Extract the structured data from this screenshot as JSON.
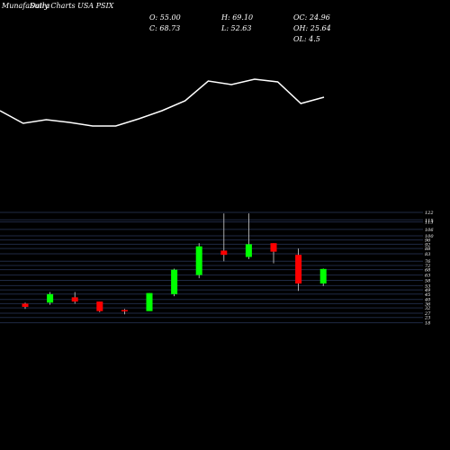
{
  "header": {
    "brand": "MunafaSutra",
    "subtitle": "Daily Charts USA PSIX",
    "o": "O: 55.00",
    "c": "C: 68.73",
    "h": "H: 69.10",
    "l": "L: 52.63",
    "oc": "OC: 24.96",
    "oh": "OH: 25.64",
    "ol": "OL: 4.5"
  },
  "colors": {
    "up": "#00ff00",
    "down": "#ff0000",
    "grid": "#1f2a44",
    "background": "#000000",
    "line": "#ffffff"
  },
  "chart_data": {
    "type": "candlestick",
    "ylim": [
      16,
      122
    ],
    "y_ticks": [
      122,
      115,
      113,
      106,
      100,
      96,
      92,
      88,
      83,
      76,
      72,
      68,
      63,
      58,
      53,
      49,
      45,
      40,
      36,
      32,
      27,
      23,
      18
    ],
    "y_tick_labels": [
      "122",
      "115",
      "113",
      "106",
      "100",
      "96",
      "92",
      "88",
      "83",
      "76",
      "72",
      "68",
      "63",
      "58",
      "53",
      "49",
      "45",
      "40",
      "36",
      "32",
      "27",
      "23",
      "18"
    ],
    "candles": [
      {
        "open": 36,
        "high": 37,
        "low": 31,
        "close": 33
      },
      {
        "open": 37,
        "high": 47,
        "low": 35,
        "close": 45
      },
      {
        "open": 42,
        "high": 47,
        "low": 36,
        "close": 38
      },
      {
        "open": 38,
        "high": 38,
        "low": 28,
        "close": 29
      },
      {
        "open": 30,
        "high": 31,
        "low": 26,
        "close": 29
      },
      {
        "open": 29,
        "high": 46,
        "low": 29,
        "close": 46
      },
      {
        "open": 45,
        "high": 69,
        "low": 43,
        "close": 68
      },
      {
        "open": 63,
        "high": 93,
        "low": 60,
        "close": 90
      },
      {
        "open": 86,
        "high": 121,
        "low": 76,
        "close": 82
      },
      {
        "open": 80,
        "high": 121,
        "low": 78,
        "close": 92
      },
      {
        "open": 93,
        "high": 93,
        "low": 74,
        "close": 85
      },
      {
        "open": 82,
        "high": 88,
        "low": 48,
        "close": 55
      },
      {
        "open": 55,
        "high": 69.1,
        "low": 52.63,
        "close": 68.73
      }
    ],
    "indicator": [
      123,
      137,
      133,
      136,
      140,
      140,
      132,
      123,
      112,
      90,
      94,
      88,
      91,
      115,
      108
    ]
  }
}
